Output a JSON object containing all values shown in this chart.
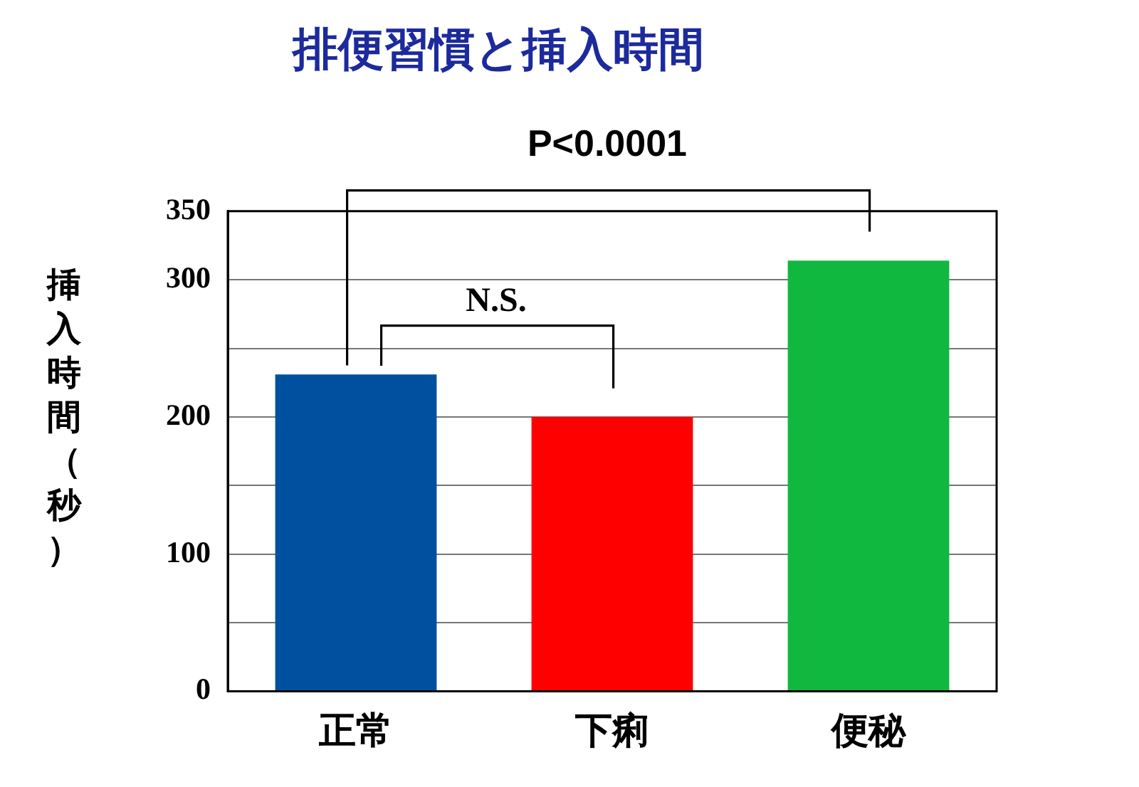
{
  "chart_data": {
    "type": "bar",
    "title": "排便習慣と挿入時間",
    "ylabel": "挿入時間（秒）",
    "categories": [
      "正常",
      "下痢",
      "便秘"
    ],
    "values": [
      231,
      200,
      314
    ],
    "colors": [
      "#0050a0",
      "#ff0000",
      "#10b840"
    ],
    "ylim": [
      0,
      350
    ],
    "yticks": [
      0,
      {
        "value": 50,
        "label": null
      },
      100,
      {
        "value": 150,
        "label": null
      },
      200,
      {
        "value": 250,
        "label": null
      },
      300,
      350
    ],
    "grid": "y",
    "legend": false,
    "annotations": [
      "P<0.0001",
      "N.S."
    ]
  }
}
